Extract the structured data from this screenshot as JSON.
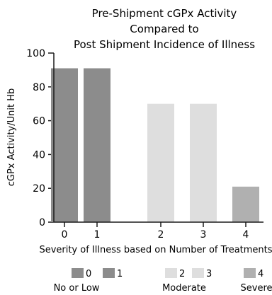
{
  "chart_data": {
    "type": "bar",
    "title": [
      "Pre-Shipment cGPx Activity",
      "Compared to",
      "Post Shipment Incidence of Illness"
    ],
    "xlabel": "Severity of Illness based on Number of Treatments",
    "ylabel": "cGPx Activity/Unit Hb",
    "categories": [
      "0",
      "1",
      "2",
      "3",
      "4"
    ],
    "values": [
      91,
      91,
      70,
      70,
      21
    ],
    "ylim": [
      0,
      100
    ],
    "yticks": [
      0,
      20,
      40,
      60,
      80,
      100
    ],
    "grid": false,
    "bar_colors": [
      "#8c8c8c",
      "#8c8c8c",
      "#dedede",
      "#dedede",
      "#b0b0b0"
    ],
    "legend": {
      "placement": "bottom",
      "groups": [
        {
          "entries": [
            {
              "label": "0",
              "color": "#8c8c8c"
            },
            {
              "label": "1",
              "color": "#8c8c8c"
            }
          ],
          "caption": "No or Low"
        },
        {
          "entries": [
            {
              "label": "2",
              "color": "#dedede"
            },
            {
              "label": "3",
              "color": "#dedede"
            }
          ],
          "caption": "Moderate"
        },
        {
          "entries": [
            {
              "label": "4",
              "color": "#b0b0b0"
            }
          ],
          "caption": "Severe"
        }
      ]
    }
  }
}
